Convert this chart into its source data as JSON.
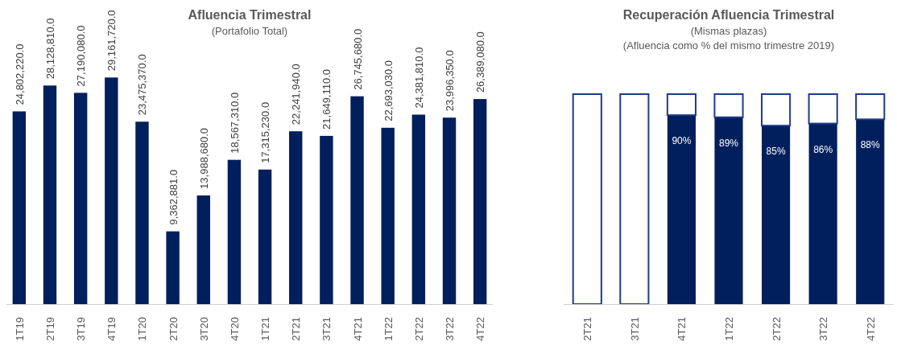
{
  "chart_data": [
    {
      "type": "bar",
      "title": "Afluencia Trimestral",
      "subtitle": "(Portafolio Total)",
      "categories": [
        "1T19",
        "2T19",
        "3T19",
        "4T19",
        "1T20",
        "2T20",
        "3T20",
        "4T20",
        "1T21",
        "2T21",
        "3T21",
        "4T21",
        "1T22",
        "2T22",
        "3T22",
        "4T22"
      ],
      "series": [
        {
          "color": "#001f5c",
          "values": [
            24802220.0,
            28128810.0,
            27190080.0,
            29161720.0,
            23475370.0,
            9362881.0,
            13988680.0,
            18567310.0,
            17315230.0,
            22241940.0,
            21649110.0,
            26745680.0,
            22693030.0,
            24381810.0,
            23996350.0,
            26389080.0
          ],
          "value_labels": [
            "24,802,220.0",
            "28,128,810.0",
            "27,190,080.0",
            "29,161,720.0",
            "23,475,370.0",
            "9,362,881.0",
            "13,988,680.0",
            "18,567,310.0",
            "17,315,230.0",
            "22,241,940.0",
            "21,649,110.0",
            "26,745,680.0",
            "22,693,030.0",
            "24,381,810.0",
            "23,996,350.0",
            "26,389,080.0"
          ]
        }
      ],
      "tick_labels": "x"
    },
    {
      "type": "bar",
      "title": "Recuperación Afluencia Trimestral",
      "subtitle": "(Mismas plazas)\n(Afluencia como % del mismo trimestre 2019)",
      "categories": [
        "2T21",
        "3T21",
        "4T21",
        "1T22",
        "2T22",
        "3T22",
        "4T22"
      ],
      "ylim": [
        0,
        100
      ],
      "stacked": true,
      "series": [
        {
          "color": "#001f5c",
          "values": [
            null,
            null,
            90,
            89,
            85,
            86,
            88
          ],
          "value_labels": [
            null,
            null,
            "90%",
            "89%",
            "85%",
            "86%",
            "88%"
          ]
        },
        {
          "color": "#ffffff",
          "values": [
            100,
            100,
            10,
            11,
            15,
            14,
            12
          ]
        }
      ],
      "tick_labels": "x"
    }
  ]
}
